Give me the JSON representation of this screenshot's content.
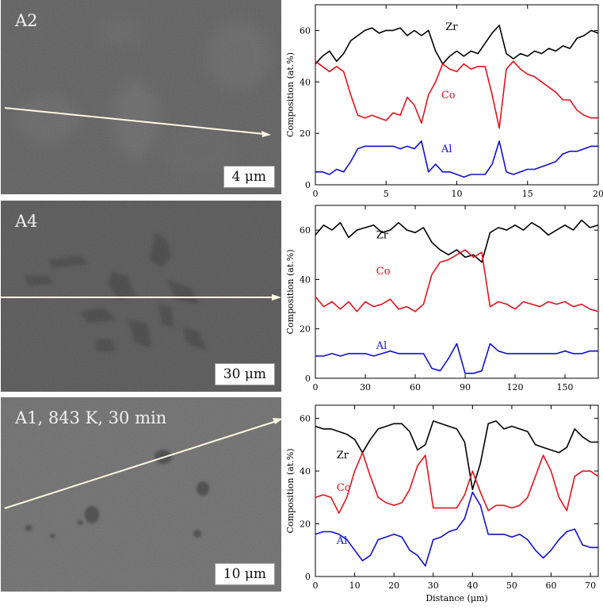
{
  "panels": [
    {
      "label": "A2",
      "scale": "4 μm"
    },
    {
      "label": "A4",
      "scale": "30 μm"
    },
    {
      "label": "A1, 843 K, 30 min",
      "scale": "10 μm"
    }
  ],
  "chart_data": [
    {
      "type": "line",
      "ylabel": "Composition (at.%)",
      "xlabel": "",
      "xlim": [
        0,
        20
      ],
      "ylim": [
        0,
        70
      ],
      "xticks": [
        0,
        5,
        10,
        15,
        20
      ],
      "yticks": [
        0,
        20,
        40,
        60
      ],
      "x": [
        0,
        0.5,
        1,
        1.5,
        2,
        2.5,
        3,
        3.5,
        4,
        4.5,
        5,
        5.5,
        6,
        6.5,
        7,
        7.5,
        8,
        8.5,
        9,
        9.5,
        10,
        10.5,
        11,
        11.5,
        12,
        12.5,
        13,
        13.5,
        14,
        14.5,
        15,
        15.5,
        16,
        16.5,
        17,
        17.5,
        18,
        18.5,
        19,
        19.5,
        20
      ],
      "series": [
        {
          "name": "Zr",
          "color": "#000000",
          "values": [
            47,
            50,
            52,
            48,
            51,
            56,
            58,
            60,
            61,
            59,
            60,
            60,
            61,
            58,
            60,
            58,
            60,
            52,
            47,
            50,
            52,
            50,
            52,
            51,
            55,
            59,
            62,
            51,
            49,
            51,
            50,
            52,
            51,
            53,
            52,
            54,
            53,
            57,
            58,
            60,
            59
          ]
        },
        {
          "name": "Co",
          "color": "#e0141e",
          "values": [
            48,
            46,
            44,
            46,
            44,
            35,
            27,
            26,
            27,
            26,
            25,
            28,
            27,
            34,
            31,
            24,
            35,
            40,
            47,
            45,
            44,
            47,
            45,
            46,
            46,
            35,
            22,
            45,
            48,
            45,
            43,
            42,
            40,
            38,
            36,
            33,
            33,
            29,
            27,
            26,
            26
          ]
        },
        {
          "name": "Al",
          "color": "#1010d0",
          "values": [
            5,
            5,
            4,
            6,
            5,
            9,
            14,
            15,
            15,
            15,
            15,
            15,
            14,
            15,
            14,
            17,
            5,
            8,
            5,
            5,
            4,
            3,
            4,
            4,
            4,
            8,
            17,
            5,
            4,
            5,
            6,
            6,
            7,
            8,
            9,
            12,
            13,
            13,
            14,
            15,
            15
          ]
        }
      ],
      "annotations": [
        "Zr",
        "Co",
        "Al"
      ]
    },
    {
      "type": "line",
      "ylabel": "Composition (at.%)",
      "xlabel": "",
      "xlim": [
        0,
        170
      ],
      "ylim": [
        0,
        70
      ],
      "xticks": [
        0,
        30,
        60,
        90,
        120,
        150
      ],
      "yticks": [
        0,
        20,
        40,
        60
      ],
      "x": [
        0,
        5,
        10,
        15,
        20,
        25,
        30,
        35,
        40,
        45,
        50,
        55,
        60,
        65,
        70,
        75,
        80,
        85,
        90,
        95,
        100,
        105,
        110,
        115,
        120,
        125,
        130,
        135,
        140,
        145,
        150,
        155,
        160,
        165,
        170
      ],
      "series": [
        {
          "name": "Zr",
          "color": "#000000",
          "values": [
            58,
            62,
            60,
            63,
            57,
            60,
            61,
            62,
            59,
            60,
            63,
            60,
            59,
            61,
            55,
            52,
            50,
            52,
            49,
            50,
            47,
            59,
            61,
            60,
            62,
            60,
            63,
            61,
            58,
            60,
            62,
            60,
            64,
            61,
            62
          ]
        },
        {
          "name": "Co",
          "color": "#e0141e",
          "values": [
            33,
            29,
            31,
            28,
            31,
            27,
            31,
            29,
            30,
            32,
            28,
            29,
            27,
            30,
            42,
            47,
            48,
            50,
            52,
            49,
            51,
            29,
            31,
            30,
            28,
            31,
            30,
            29,
            31,
            30,
            31,
            29,
            30,
            28,
            27
          ]
        },
        {
          "name": "Al",
          "color": "#1010d0",
          "values": [
            9,
            9,
            10,
            9,
            10,
            10,
            10,
            9,
            10,
            11,
            10,
            10,
            10,
            10,
            4,
            3,
            8,
            14,
            2,
            2,
            3,
            14,
            11,
            10,
            10,
            10,
            10,
            10,
            10,
            10,
            11,
            10,
            10,
            11,
            11
          ]
        }
      ],
      "annotations": [
        "Zr",
        "Co",
        "Al"
      ]
    },
    {
      "type": "line",
      "ylabel": "Composition (at.%)",
      "xlabel": "Distance (μm)",
      "xlim": [
        0,
        72
      ],
      "ylim": [
        0,
        65
      ],
      "xticks": [
        0,
        10,
        20,
        30,
        40,
        50,
        60,
        70
      ],
      "yticks": [
        0,
        20,
        40,
        60
      ],
      "x": [
        0,
        2,
        4,
        6,
        8,
        10,
        12,
        14,
        16,
        18,
        20,
        22,
        24,
        26,
        28,
        30,
        32,
        34,
        36,
        38,
        40,
        42,
        44,
        46,
        48,
        50,
        52,
        54,
        56,
        58,
        60,
        62,
        64,
        66,
        68,
        70,
        72
      ],
      "series": [
        {
          "name": "Zr",
          "color": "#000000",
          "values": [
            57,
            56,
            56,
            55,
            54,
            52,
            47,
            52,
            56,
            57,
            58,
            58,
            55,
            48,
            50,
            59,
            58,
            57,
            56,
            51,
            33,
            43,
            58,
            59,
            56,
            57,
            56,
            55,
            50,
            49,
            48,
            47,
            49,
            56,
            53,
            51,
            51
          ]
        },
        {
          "name": "Co",
          "color": "#e0141e",
          "values": [
            30,
            31,
            30,
            24,
            30,
            40,
            47,
            38,
            30,
            28,
            27,
            28,
            33,
            42,
            46,
            26,
            26,
            26,
            26,
            31,
            40,
            32,
            25,
            27,
            27,
            26,
            27,
            30,
            38,
            46,
            40,
            30,
            25,
            38,
            40,
            40,
            38
          ]
        },
        {
          "name": "Al",
          "color": "#1010d0",
          "values": [
            16,
            17,
            17,
            16,
            14,
            10,
            6,
            8,
            14,
            15,
            16,
            15,
            10,
            8,
            4,
            14,
            15,
            17,
            18,
            22,
            32,
            27,
            16,
            16,
            16,
            15,
            16,
            14,
            10,
            7,
            10,
            14,
            17,
            18,
            12,
            11,
            11
          ]
        }
      ],
      "annotations": [
        "Zr",
        "Co",
        "Al"
      ]
    }
  ]
}
